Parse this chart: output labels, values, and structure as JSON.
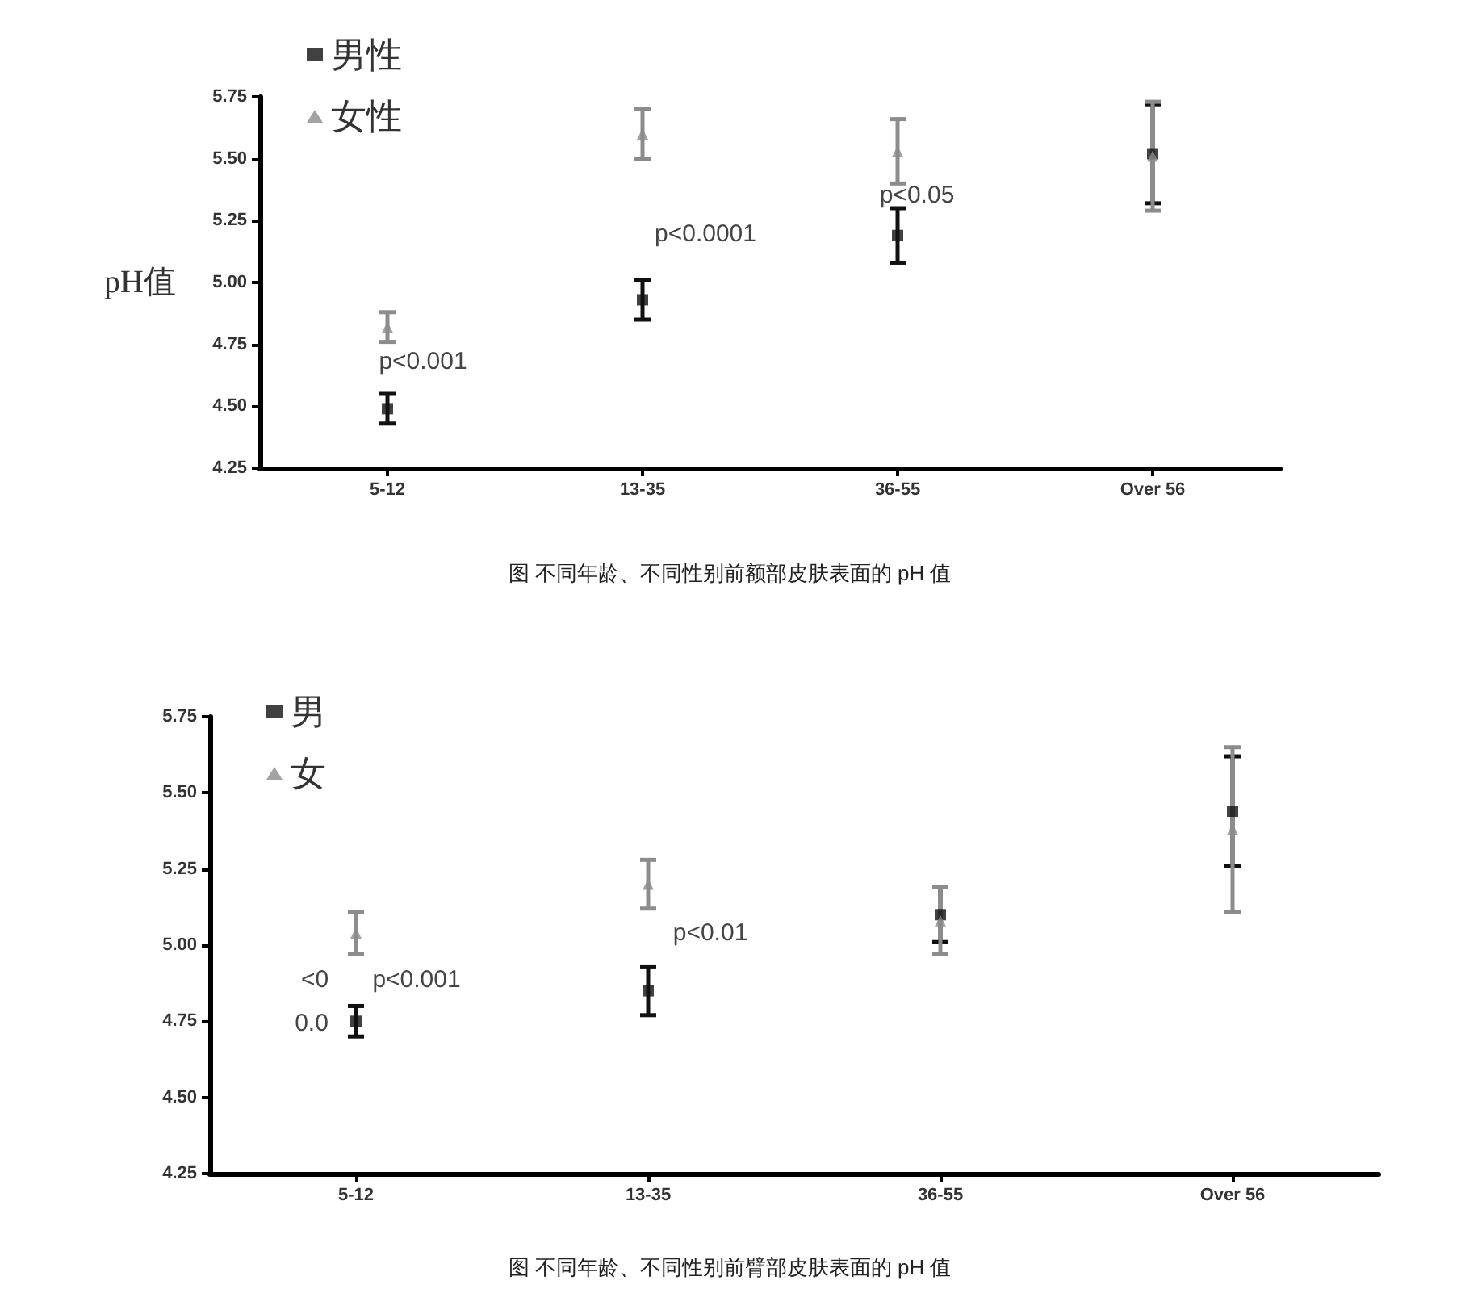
{
  "chart_data": [
    {
      "type": "scatter",
      "ylabel": "pH值",
      "categories": [
        "5-12",
        "13-35",
        "36-55",
        "Over 56"
      ],
      "series": [
        {
          "name": "男性",
          "color": "#111111",
          "marker": "square",
          "values": [
            4.49,
            4.93,
            5.19,
            5.52
          ],
          "errors": [
            0.06,
            0.08,
            0.11,
            0.2
          ]
        },
        {
          "name": "女性",
          "color": "#8c8c8c",
          "marker": "triangle",
          "values": [
            4.82,
            5.6,
            5.53,
            5.51
          ],
          "errors": [
            0.06,
            0.1,
            0.13,
            0.22
          ]
        }
      ],
      "ylim": [
        4.25,
        5.75
      ],
      "yticks": [
        4.25,
        {
          "value": 4.5,
          "label": "4.50"
        },
        4.75,
        {
          "value": 5,
          "label": "5.00"
        },
        5.25,
        {
          "value": 5.5,
          "label": "5.50"
        },
        5.75
      ],
      "legend": "top left",
      "grid": false,
      "annotations": [
        "p<0.001",
        "p<0.0001",
        "p<0.05",
        "图 不同年龄、不同性别前额部皮肤表面的 pH 值"
      ]
    },
    {
      "type": "scatter",
      "categories": [
        "5-12",
        "13-35",
        "36-55",
        "Over 56"
      ],
      "series": [
        {
          "name": "男",
          "color": "#111111",
          "marker": "square",
          "values": [
            4.75,
            4.85,
            5.1,
            5.44
          ],
          "errors": [
            0.05,
            0.08,
            0.09,
            0.18
          ]
        },
        {
          "name": "女",
          "color": "#8c8c8c",
          "marker": "triangle",
          "values": [
            5.04,
            5.2,
            5.08,
            5.38
          ],
          "errors": [
            0.07,
            0.08,
            0.11,
            0.27
          ]
        }
      ],
      "ylim": [
        4.25,
        5.75
      ],
      "yticks": [
        4.25,
        {
          "value": 4.5,
          "label": "4.50"
        },
        4.75,
        {
          "value": 5,
          "label": "5.00"
        },
        5.25,
        {
          "value": 5.5,
          "label": "5.50"
        },
        5.75
      ],
      "legend": "top left",
      "grid": false,
      "annotations": [
        "p<0.001",
        "p<0.01",
        "<0",
        "0.0",
        "图 不同年龄、不同性别前臂部皮肤表面的 pH 值"
      ]
    }
  ]
}
